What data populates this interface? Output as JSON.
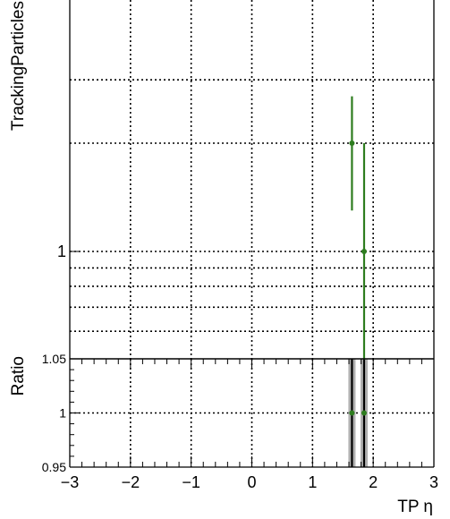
{
  "chart_data": [
    {
      "type": "scatter",
      "role": "main-panel",
      "ylabel": "TrackingParticles",
      "yscale": "log",
      "xlim": [
        -3,
        3
      ],
      "ylim": [
        0.6,
        3.6
      ],
      "y_major_tick_labels": [
        {
          "value": 1,
          "label": "1"
        }
      ],
      "grid": true,
      "series": [
        {
          "color": "#2e7d1f",
          "points": [
            {
              "x": 1.65,
              "y": 2.0,
              "yerr_low": 1.3,
              "yerr_high": 2.7
            },
            {
              "x": 1.85,
              "y": 1.0,
              "yerr_low": 0.5,
              "yerr_high": 2.0
            }
          ]
        }
      ]
    },
    {
      "type": "scatter",
      "role": "ratio-panel",
      "xlabel": "TP η",
      "ylabel": "Ratio",
      "xlim": [
        -3,
        3
      ],
      "ylim": [
        0.95,
        1.05
      ],
      "x_tick_labels": [
        "−3",
        "−2",
        "−1",
        "0",
        "1",
        "2",
        "3"
      ],
      "x_tick_values": [
        -3,
        -2,
        -1,
        0,
        1,
        2,
        3
      ],
      "y_tick_labels": [
        {
          "value": 0.95,
          "label": "0.95"
        },
        {
          "value": 1,
          "label": "1"
        },
        {
          "value": 1.05,
          "label": "1.05"
        }
      ],
      "grid": true,
      "series": [
        {
          "color": "#2e7d1f",
          "points": [
            {
              "x": 1.65,
              "y": 1.0
            },
            {
              "x": 1.85,
              "y": 1.0
            }
          ],
          "uncertainty_band_color": "#b0b0b0"
        }
      ]
    }
  ]
}
